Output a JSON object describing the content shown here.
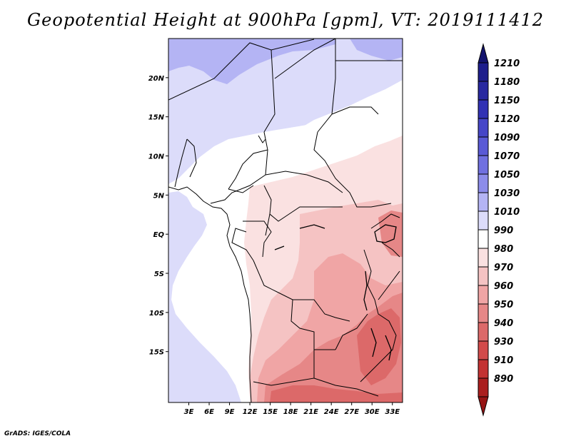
{
  "title": "Geopotential Height at 900hPa [gpm], VT: 2019111412",
  "credit": "GrADS: IGES/COLA",
  "map": {
    "lon_range": [
      0,
      34.5
    ],
    "lat_range": [
      -21.5,
      25
    ],
    "lon_ticks": [
      {
        "value": 3,
        "label": "3E"
      },
      {
        "value": 6,
        "label": "6E"
      },
      {
        "value": 9,
        "label": "9E"
      },
      {
        "value": 12,
        "label": "12E"
      },
      {
        "value": 15,
        "label": "15E"
      },
      {
        "value": 18,
        "label": "18E"
      },
      {
        "value": 21,
        "label": "21E"
      },
      {
        "value": 24,
        "label": "24E"
      },
      {
        "value": 27,
        "label": "27E"
      },
      {
        "value": 30,
        "label": "30E"
      },
      {
        "value": 33,
        "label": "33E"
      }
    ],
    "lat_ticks": [
      {
        "value": 20,
        "label": "20N"
      },
      {
        "value": 15,
        "label": "15N"
      },
      {
        "value": 10,
        "label": "10N"
      },
      {
        "value": 5,
        "label": "5N"
      },
      {
        "value": 0,
        "label": "EQ"
      },
      {
        "value": -5,
        "label": "5S"
      },
      {
        "value": -10,
        "label": "10S"
      },
      {
        "value": -15,
        "label": "15S"
      }
    ]
  },
  "colorbar": {
    "levels": [
      {
        "label": "1210",
        "color": "#1e1e8c"
      },
      {
        "label": "1180",
        "color": "#2828a0"
      },
      {
        "label": "1150",
        "color": "#3232b4"
      },
      {
        "label": "1120",
        "color": "#4646c8"
      },
      {
        "label": "1090",
        "color": "#5a5ad6"
      },
      {
        "label": "1070",
        "color": "#7070e0"
      },
      {
        "label": "1050",
        "color": "#8c8cea"
      },
      {
        "label": "1030",
        "color": "#b4b4f4"
      },
      {
        "label": "1010",
        "color": "#dcdcfa"
      },
      {
        "label": "990",
        "color": "#ffffff"
      },
      {
        "label": "980",
        "color": "#fae1e1"
      },
      {
        "label": "970",
        "color": "#f5c3c3"
      },
      {
        "label": "960",
        "color": "#f0a5a5"
      },
      {
        "label": "950",
        "color": "#e68787"
      },
      {
        "label": "940",
        "color": "#dc6969"
      },
      {
        "label": "930",
        "color": "#d24b4b"
      },
      {
        "label": "910",
        "color": "#c33232"
      },
      {
        "label": "890",
        "color": "#aa1e1e"
      }
    ],
    "top_color": "#14146e",
    "bottom_color": "#961414"
  }
}
